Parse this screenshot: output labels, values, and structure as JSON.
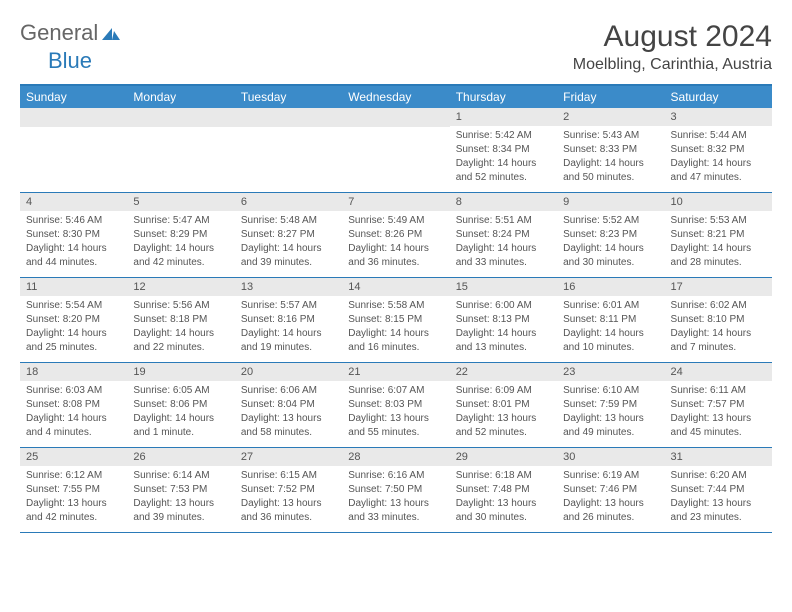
{
  "logo": {
    "general": "General",
    "blue": "Blue"
  },
  "title": "August 2024",
  "location": "Moelbling, Carinthia, Austria",
  "colors": {
    "header_bg": "#3b8bc9",
    "border": "#2a7ab8",
    "daynum_bg": "#e9e9e9",
    "text": "#555555",
    "logo_general": "#666666",
    "logo_blue": "#2a7ab8"
  },
  "fonts": {
    "title_size": 30,
    "location_size": 16,
    "dow_size": 12,
    "body_size": 10
  },
  "daysOfWeek": [
    "Sunday",
    "Monday",
    "Tuesday",
    "Wednesday",
    "Thursday",
    "Friday",
    "Saturday"
  ],
  "weeks": [
    [
      {
        "empty": true
      },
      {
        "empty": true
      },
      {
        "empty": true
      },
      {
        "empty": true
      },
      {
        "n": "1",
        "sr": "Sunrise: 5:42 AM",
        "ss": "Sunset: 8:34 PM",
        "dl1": "Daylight: 14 hours",
        "dl2": "and 52 minutes."
      },
      {
        "n": "2",
        "sr": "Sunrise: 5:43 AM",
        "ss": "Sunset: 8:33 PM",
        "dl1": "Daylight: 14 hours",
        "dl2": "and 50 minutes."
      },
      {
        "n": "3",
        "sr": "Sunrise: 5:44 AM",
        "ss": "Sunset: 8:32 PM",
        "dl1": "Daylight: 14 hours",
        "dl2": "and 47 minutes."
      }
    ],
    [
      {
        "n": "4",
        "sr": "Sunrise: 5:46 AM",
        "ss": "Sunset: 8:30 PM",
        "dl1": "Daylight: 14 hours",
        "dl2": "and 44 minutes."
      },
      {
        "n": "5",
        "sr": "Sunrise: 5:47 AM",
        "ss": "Sunset: 8:29 PM",
        "dl1": "Daylight: 14 hours",
        "dl2": "and 42 minutes."
      },
      {
        "n": "6",
        "sr": "Sunrise: 5:48 AM",
        "ss": "Sunset: 8:27 PM",
        "dl1": "Daylight: 14 hours",
        "dl2": "and 39 minutes."
      },
      {
        "n": "7",
        "sr": "Sunrise: 5:49 AM",
        "ss": "Sunset: 8:26 PM",
        "dl1": "Daylight: 14 hours",
        "dl2": "and 36 minutes."
      },
      {
        "n": "8",
        "sr": "Sunrise: 5:51 AM",
        "ss": "Sunset: 8:24 PM",
        "dl1": "Daylight: 14 hours",
        "dl2": "and 33 minutes."
      },
      {
        "n": "9",
        "sr": "Sunrise: 5:52 AM",
        "ss": "Sunset: 8:23 PM",
        "dl1": "Daylight: 14 hours",
        "dl2": "and 30 minutes."
      },
      {
        "n": "10",
        "sr": "Sunrise: 5:53 AM",
        "ss": "Sunset: 8:21 PM",
        "dl1": "Daylight: 14 hours",
        "dl2": "and 28 minutes."
      }
    ],
    [
      {
        "n": "11",
        "sr": "Sunrise: 5:54 AM",
        "ss": "Sunset: 8:20 PM",
        "dl1": "Daylight: 14 hours",
        "dl2": "and 25 minutes."
      },
      {
        "n": "12",
        "sr": "Sunrise: 5:56 AM",
        "ss": "Sunset: 8:18 PM",
        "dl1": "Daylight: 14 hours",
        "dl2": "and 22 minutes."
      },
      {
        "n": "13",
        "sr": "Sunrise: 5:57 AM",
        "ss": "Sunset: 8:16 PM",
        "dl1": "Daylight: 14 hours",
        "dl2": "and 19 minutes."
      },
      {
        "n": "14",
        "sr": "Sunrise: 5:58 AM",
        "ss": "Sunset: 8:15 PM",
        "dl1": "Daylight: 14 hours",
        "dl2": "and 16 minutes."
      },
      {
        "n": "15",
        "sr": "Sunrise: 6:00 AM",
        "ss": "Sunset: 8:13 PM",
        "dl1": "Daylight: 14 hours",
        "dl2": "and 13 minutes."
      },
      {
        "n": "16",
        "sr": "Sunrise: 6:01 AM",
        "ss": "Sunset: 8:11 PM",
        "dl1": "Daylight: 14 hours",
        "dl2": "and 10 minutes."
      },
      {
        "n": "17",
        "sr": "Sunrise: 6:02 AM",
        "ss": "Sunset: 8:10 PM",
        "dl1": "Daylight: 14 hours",
        "dl2": "and 7 minutes."
      }
    ],
    [
      {
        "n": "18",
        "sr": "Sunrise: 6:03 AM",
        "ss": "Sunset: 8:08 PM",
        "dl1": "Daylight: 14 hours",
        "dl2": "and 4 minutes."
      },
      {
        "n": "19",
        "sr": "Sunrise: 6:05 AM",
        "ss": "Sunset: 8:06 PM",
        "dl1": "Daylight: 14 hours",
        "dl2": "and 1 minute."
      },
      {
        "n": "20",
        "sr": "Sunrise: 6:06 AM",
        "ss": "Sunset: 8:04 PM",
        "dl1": "Daylight: 13 hours",
        "dl2": "and 58 minutes."
      },
      {
        "n": "21",
        "sr": "Sunrise: 6:07 AM",
        "ss": "Sunset: 8:03 PM",
        "dl1": "Daylight: 13 hours",
        "dl2": "and 55 minutes."
      },
      {
        "n": "22",
        "sr": "Sunrise: 6:09 AM",
        "ss": "Sunset: 8:01 PM",
        "dl1": "Daylight: 13 hours",
        "dl2": "and 52 minutes."
      },
      {
        "n": "23",
        "sr": "Sunrise: 6:10 AM",
        "ss": "Sunset: 7:59 PM",
        "dl1": "Daylight: 13 hours",
        "dl2": "and 49 minutes."
      },
      {
        "n": "24",
        "sr": "Sunrise: 6:11 AM",
        "ss": "Sunset: 7:57 PM",
        "dl1": "Daylight: 13 hours",
        "dl2": "and 45 minutes."
      }
    ],
    [
      {
        "n": "25",
        "sr": "Sunrise: 6:12 AM",
        "ss": "Sunset: 7:55 PM",
        "dl1": "Daylight: 13 hours",
        "dl2": "and 42 minutes."
      },
      {
        "n": "26",
        "sr": "Sunrise: 6:14 AM",
        "ss": "Sunset: 7:53 PM",
        "dl1": "Daylight: 13 hours",
        "dl2": "and 39 minutes."
      },
      {
        "n": "27",
        "sr": "Sunrise: 6:15 AM",
        "ss": "Sunset: 7:52 PM",
        "dl1": "Daylight: 13 hours",
        "dl2": "and 36 minutes."
      },
      {
        "n": "28",
        "sr": "Sunrise: 6:16 AM",
        "ss": "Sunset: 7:50 PM",
        "dl1": "Daylight: 13 hours",
        "dl2": "and 33 minutes."
      },
      {
        "n": "29",
        "sr": "Sunrise: 6:18 AM",
        "ss": "Sunset: 7:48 PM",
        "dl1": "Daylight: 13 hours",
        "dl2": "and 30 minutes."
      },
      {
        "n": "30",
        "sr": "Sunrise: 6:19 AM",
        "ss": "Sunset: 7:46 PM",
        "dl1": "Daylight: 13 hours",
        "dl2": "and 26 minutes."
      },
      {
        "n": "31",
        "sr": "Sunrise: 6:20 AM",
        "ss": "Sunset: 7:44 PM",
        "dl1": "Daylight: 13 hours",
        "dl2": "and 23 minutes."
      }
    ]
  ]
}
